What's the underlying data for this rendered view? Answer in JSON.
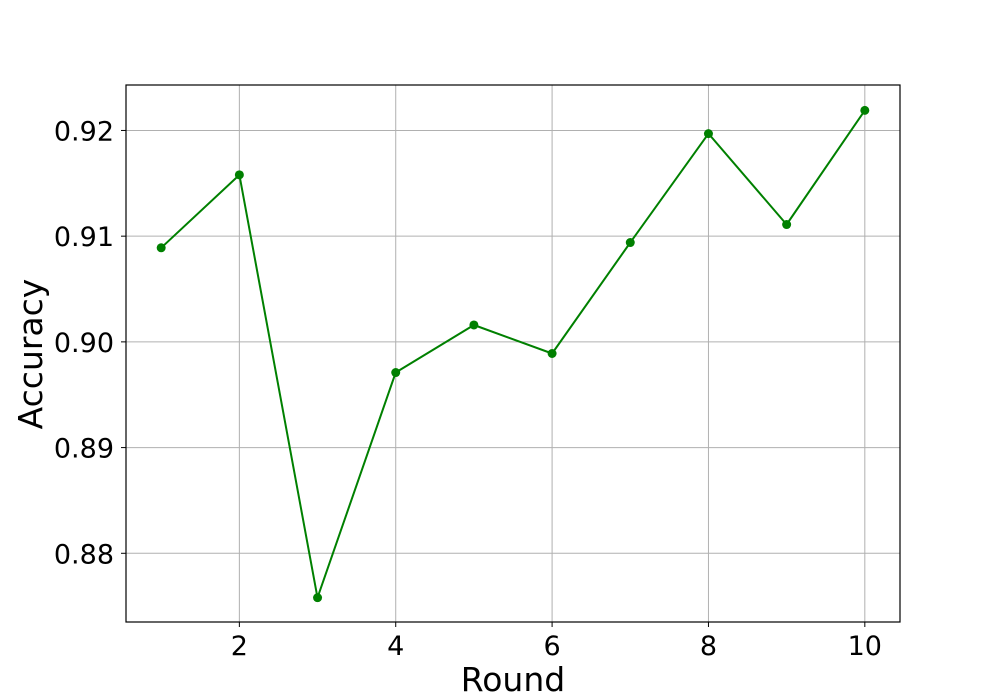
{
  "chart_data": {
    "type": "line",
    "title": "",
    "xlabel": "Round",
    "ylabel": "Accuracy",
    "xlim": [
      0.55,
      10.45
    ],
    "ylim": [
      0.8735,
      0.9243
    ],
    "x_ticks": [
      2,
      4,
      6,
      8,
      10
    ],
    "x_tick_labels": [
      "2",
      "4",
      "6",
      "8",
      "10"
    ],
    "y_ticks": [
      0.88,
      0.89,
      0.9,
      0.91,
      0.92
    ],
    "y_tick_labels": [
      "0.88",
      "0.89",
      "0.90",
      "0.91",
      "0.92"
    ],
    "grid": true,
    "legend": "none",
    "series": [
      {
        "color": "#008000",
        "marker": "circle",
        "x": [
          1,
          2,
          3,
          4,
          5,
          6,
          7,
          8,
          9,
          10
        ],
        "y": [
          0.9089,
          0.9158,
          0.8758,
          0.8971,
          0.9016,
          0.8989,
          0.9094,
          0.9197,
          0.9111,
          0.9219
        ]
      }
    ]
  }
}
